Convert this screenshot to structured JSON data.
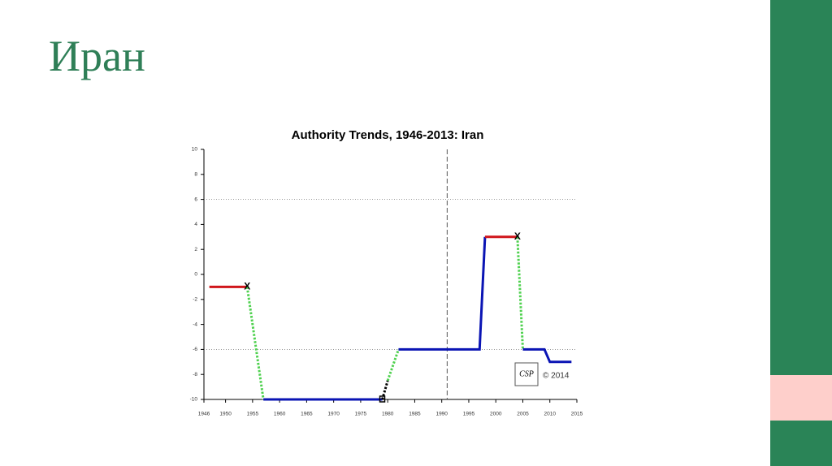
{
  "slide_title": "Иран",
  "chart_data": {
    "type": "line",
    "title": "Authority Trends, 1946-2013: Iran",
    "xlim": [
      1946,
      2015
    ],
    "xticks": [
      1946,
      1950,
      1955,
      1960,
      1965,
      1970,
      1975,
      1980,
      1985,
      1990,
      1995,
      2000,
      2005,
      2010,
      2015
    ],
    "ylim": [
      -10,
      10
    ],
    "yticks": [
      -10,
      -8,
      -6,
      -4,
      -2,
      0,
      2,
      4,
      6,
      8,
      10
    ],
    "hlines": [
      6,
      -6
    ],
    "vline": 1991,
    "segments": [
      {
        "color": "#d0161b",
        "style": "solid",
        "x": [
          1947,
          1954
        ],
        "y": [
          -1,
          -1
        ]
      },
      {
        "color": "#4fd14f",
        "style": "dotted",
        "x": [
          1954,
          1957
        ],
        "y": [
          -1,
          -10
        ]
      },
      {
        "color": "#0a14b4",
        "style": "solid",
        "x": [
          1957,
          1979
        ],
        "y": [
          -10,
          -10
        ]
      },
      {
        "color": "#000000",
        "style": "dotted",
        "x": [
          1979,
          1980
        ],
        "y": [
          -10,
          -8.5
        ]
      },
      {
        "color": "#4fd14f",
        "style": "dotted",
        "x": [
          1980,
          1982
        ],
        "y": [
          -8.5,
          -6
        ]
      },
      {
        "color": "#0a14b4",
        "style": "solid",
        "x": [
          1982,
          1997,
          1998
        ],
        "y": [
          -6,
          -6,
          3
        ]
      },
      {
        "color": "#d0161b",
        "style": "solid",
        "x": [
          1998,
          2004
        ],
        "y": [
          3,
          3
        ]
      },
      {
        "color": "#4fd14f",
        "style": "dotted",
        "x": [
          2004,
          2005
        ],
        "y": [
          3,
          -6
        ]
      },
      {
        "color": "#0a14b4",
        "style": "solid",
        "x": [
          2005,
          2009,
          2010,
          2014
        ],
        "y": [
          -6,
          -6,
          -7,
          -7
        ]
      }
    ],
    "markers": [
      {
        "x": 1954,
        "y": -1,
        "label": "X"
      },
      {
        "x": 2004,
        "y": 3,
        "label": "X"
      },
      {
        "x": 1979,
        "y": -10,
        "symbol": "square"
      }
    ],
    "logo": "CSP",
    "copyright": "© 2014"
  }
}
